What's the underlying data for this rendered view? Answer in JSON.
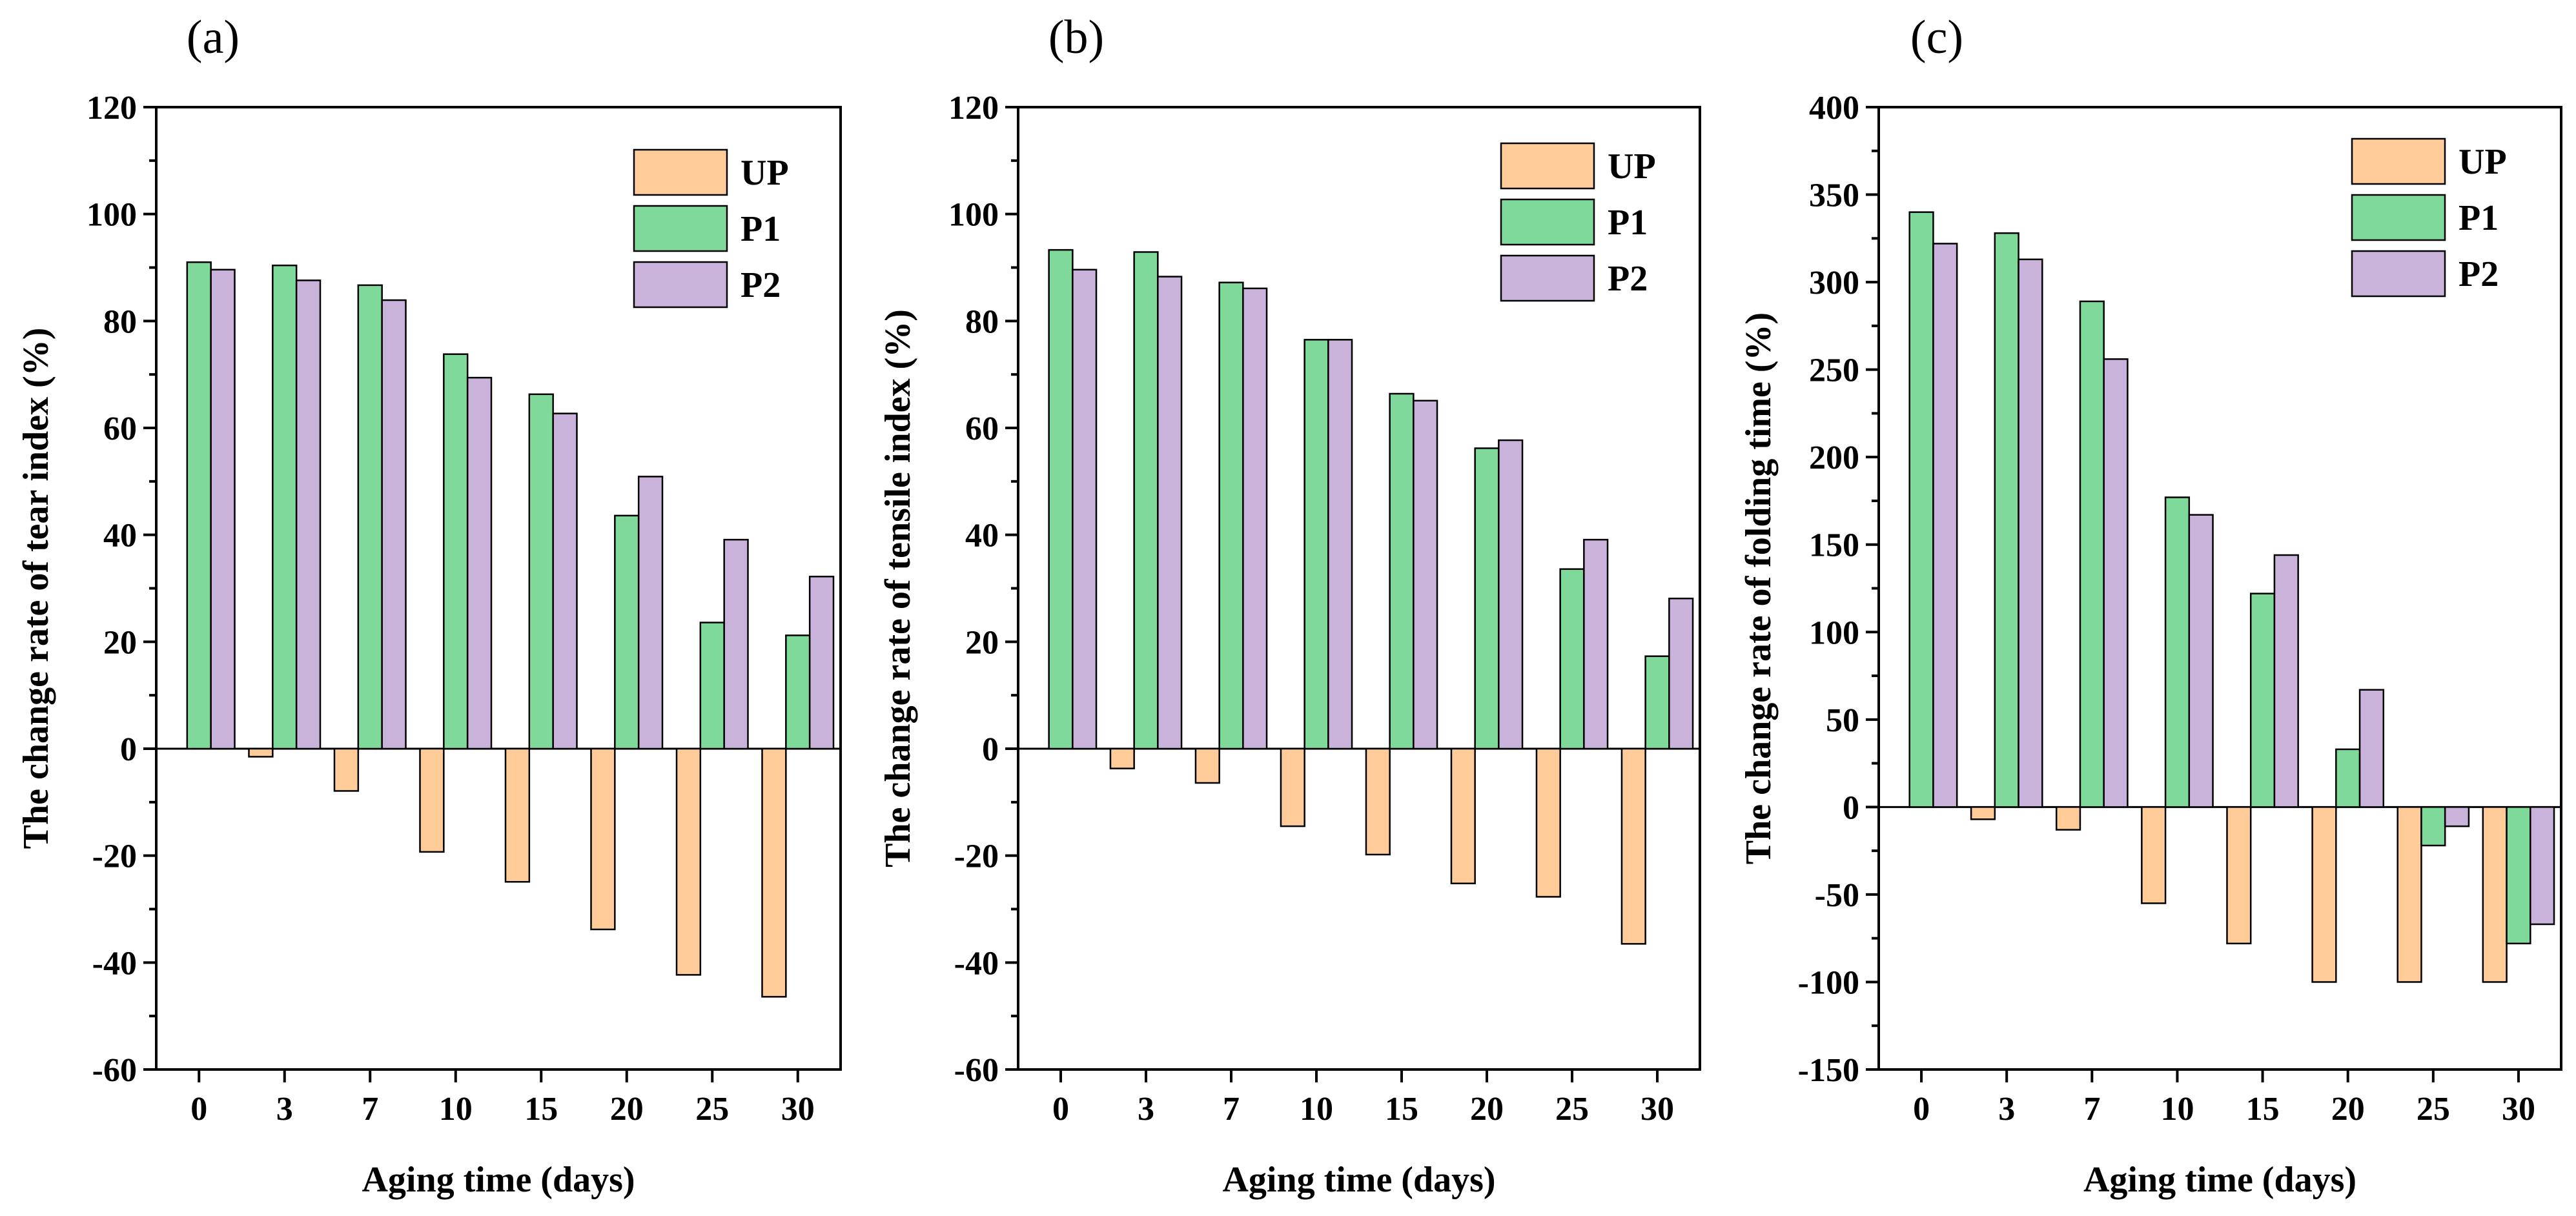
{
  "chart_data": [
    {
      "type": "bar",
      "panel_label": "(a)",
      "xlabel": "Aging time (days)",
      "ylabel": "The change rate of tear index (%)",
      "categories": [
        "0",
        "3",
        "7",
        "10",
        "15",
        "20",
        "25",
        "30"
      ],
      "ylim": [
        -60,
        120
      ],
      "yticks": [
        -60,
        -40,
        -20,
        0,
        20,
        40,
        60,
        80,
        100,
        120
      ],
      "series": [
        {
          "name": "UP",
          "color": "#ffcc99",
          "values": [
            0,
            -1.5,
            -7.9,
            -19.3,
            -24.9,
            -33.8,
            -42.3,
            -46.4
          ]
        },
        {
          "name": "P1",
          "color": "#7fd99b",
          "values": [
            91.0,
            90.4,
            86.7,
            73.8,
            66.3,
            43.6,
            23.6,
            21.2
          ]
        },
        {
          "name": "P2",
          "color": "#c9b3da",
          "values": [
            89.6,
            87.6,
            83.9,
            69.4,
            62.7,
            50.9,
            39.1,
            32.2
          ]
        }
      ],
      "legend_position": "top-right"
    },
    {
      "type": "bar",
      "panel_label": "(b)",
      "xlabel": "Aging time (days)",
      "ylabel": "The change rate of tensile index (%)",
      "categories": [
        "0",
        "3",
        "7",
        "10",
        "15",
        "20",
        "25",
        "30"
      ],
      "ylim": [
        -60,
        120
      ],
      "yticks": [
        -60,
        -40,
        -20,
        0,
        20,
        40,
        60,
        80,
        100,
        120
      ],
      "series": [
        {
          "name": "UP",
          "color": "#ffcc99",
          "values": [
            0,
            -3.7,
            -6.4,
            -14.5,
            -19.8,
            -25.2,
            -27.7,
            -36.5
          ]
        },
        {
          "name": "P1",
          "color": "#7fd99b",
          "values": [
            93.3,
            92.9,
            87.2,
            76.5,
            66.4,
            56.2,
            33.6,
            17.3
          ]
        },
        {
          "name": "P2",
          "color": "#c9b3da",
          "values": [
            89.6,
            88.3,
            86.1,
            76.5,
            65.1,
            57.7,
            39.1,
            28.1
          ]
        }
      ],
      "legend_position": "top-right"
    },
    {
      "type": "bar",
      "panel_label": "(c)",
      "xlabel": "Aging time (days)",
      "ylabel": "The change rate of folding time (%)",
      "categories": [
        "0",
        "3",
        "7",
        "10",
        "15",
        "20",
        "25",
        "30"
      ],
      "ylim": [
        -150,
        400
      ],
      "yticks": [
        -150,
        -100,
        -50,
        0,
        50,
        100,
        150,
        200,
        250,
        300,
        350,
        400
      ],
      "series": [
        {
          "name": "UP",
          "color": "#ffcc99",
          "values": [
            0,
            -7,
            -13,
            -55,
            -78,
            -100,
            -100,
            -100
          ]
        },
        {
          "name": "P1",
          "color": "#7fd99b",
          "values": [
            340,
            328,
            289,
            177,
            122,
            33,
            -22,
            -78
          ]
        },
        {
          "name": "P2",
          "color": "#c9b3da",
          "values": [
            322,
            313,
            256,
            167,
            144,
            67,
            -11,
            -67
          ]
        }
      ],
      "legend_position": "top-right"
    }
  ]
}
